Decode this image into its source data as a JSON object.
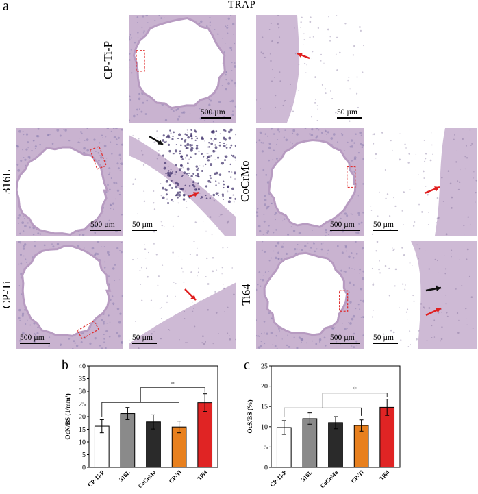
{
  "figure": {
    "panel_a": "a",
    "panel_b": "b",
    "panel_c": "c",
    "title": "TRAP",
    "samples": {
      "cpti_p": "CP-Ti-P",
      "l316": "316L",
      "cocrmo": "CoCrMo",
      "cpti": "CP-Ti",
      "ti64": "Ti64"
    },
    "scale_500": "500 µm",
    "scale_50": "50 µm",
    "colors": {
      "tissue": "#c9b3d0",
      "marrow": "#8d7fb0",
      "background": "#f4eef5",
      "box": "#e03030",
      "arrow_red": "#e02020",
      "arrow_black": "#111111"
    }
  },
  "chart_data": [
    {
      "type": "bar",
      "panel": "b",
      "categories": [
        "CP-Ti-P",
        "316L",
        "CoCrMo",
        "CP-Ti",
        "Ti64"
      ],
      "values": [
        16.2,
        21.2,
        17.9,
        15.9,
        25.5
      ],
      "errors": [
        2.6,
        2.4,
        2.8,
        2.3,
        3.5
      ],
      "colors": [
        "#ffffff",
        "#8a8a8a",
        "#2a2a2a",
        "#e8801e",
        "#e02424"
      ],
      "ylabel": "OcN/BS (1/mm²)",
      "ylim": [
        0,
        40
      ],
      "yticks": [
        0,
        5,
        10,
        15,
        20,
        25,
        30,
        35,
        40
      ],
      "significance": "*"
    },
    {
      "type": "bar",
      "panel": "c",
      "categories": [
        "CP-Ti-P",
        "316L",
        "CoCrMo",
        "CP-Ti",
        "Ti64"
      ],
      "values": [
        9.8,
        12.0,
        11.0,
        10.3,
        14.8
      ],
      "errors": [
        1.7,
        1.4,
        1.5,
        1.4,
        2.0
      ],
      "colors": [
        "#ffffff",
        "#8a8a8a",
        "#2a2a2a",
        "#e8801e",
        "#e02424"
      ],
      "ylabel": "OcS/BS (%)",
      "ylim": [
        0,
        25
      ],
      "yticks": [
        0,
        5,
        10,
        15,
        20,
        25
      ],
      "significance": "*"
    }
  ]
}
